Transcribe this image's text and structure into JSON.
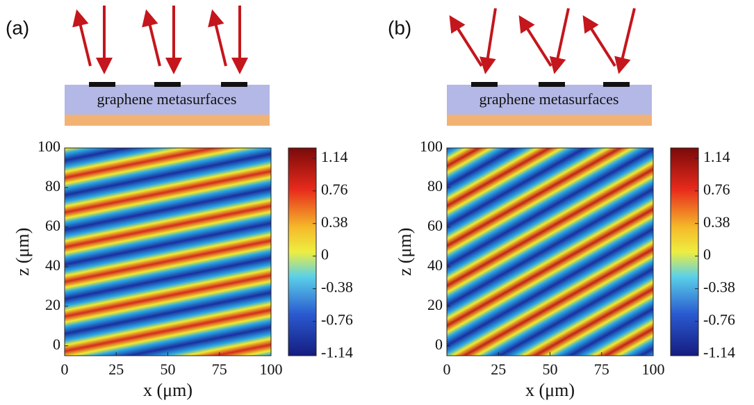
{
  "chart_data": [
    {
      "type": "field",
      "panel_label": "(a)",
      "diagram_label": "graphene metasurfaces",
      "xlabel": "x (μm)",
      "ylabel": "z (μm)",
      "xlim": [
        0,
        100
      ],
      "ylim": [
        -5,
        100
      ],
      "xticks": [
        0,
        25,
        50,
        75,
        100
      ],
      "yticks": [
        0,
        20,
        40,
        60,
        80,
        100
      ],
      "clim": [
        -1.16,
        1.26
      ],
      "cticks": [
        1.14,
        0.76,
        0.38,
        0,
        -0.38,
        -0.76,
        -1.14
      ]
    },
    {
      "type": "field",
      "panel_label": "(b)",
      "diagram_label": "graphene metasurfaces",
      "xlabel": "x (μm)",
      "ylabel": "z (μm)",
      "xlim": [
        0,
        100
      ],
      "ylim": [
        -5,
        100
      ],
      "xticks": [
        0,
        25,
        50,
        75,
        100
      ],
      "yticks": [
        0,
        20,
        40,
        60,
        80,
        100
      ],
      "clim": [
        -1.16,
        1.26
      ],
      "cticks": [
        1.14,
        0.76,
        0.38,
        0,
        -0.38,
        -0.76,
        -1.14
      ]
    }
  ]
}
